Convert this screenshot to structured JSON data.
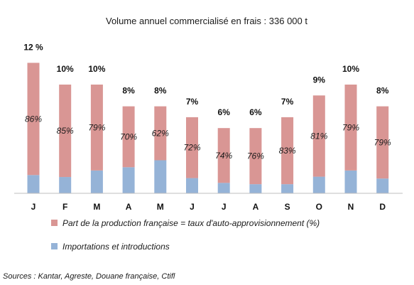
{
  "chart_data": {
    "type": "bar",
    "stacked": true,
    "title": "Volume annuel commercialisé en frais : 336 000 t",
    "categories": [
      "J",
      "F",
      "M",
      "A",
      "M",
      "J",
      "J",
      "A",
      "S",
      "O",
      "N",
      "D"
    ],
    "monthly_share_labels": [
      "12 %",
      "10%",
      "10%",
      "8%",
      "8%",
      "7%",
      "6%",
      "6%",
      "7%",
      "9%",
      "10%",
      "8%"
    ],
    "monthly_share": [
      12,
      10,
      10,
      8,
      8,
      7,
      6,
      6,
      7,
      9,
      10,
      8
    ],
    "series": [
      {
        "name": "Importations et introductions",
        "color": "#95b3d7",
        "values": [
          14,
          15,
          21,
          30,
          38,
          20,
          16,
          14,
          12,
          17,
          21,
          17
        ]
      },
      {
        "name": "Part de la production française = taux d'auto-approvisionnement (%)",
        "color": "#d99694",
        "values": [
          86,
          85,
          79,
          70,
          62,
          72,
          74,
          76,
          83,
          81,
          79,
          79
        ],
        "labels": [
          "86%",
          "85%",
          "79%",
          "70%",
          "62%",
          "72%",
          "74%",
          "76%",
          "83%",
          "81%",
          "79%",
          "79%"
        ]
      }
    ],
    "legend_position": "bottom",
    "grid": false
  },
  "source": "Sources : Kantar, Agreste, Douane française, Ctifl"
}
